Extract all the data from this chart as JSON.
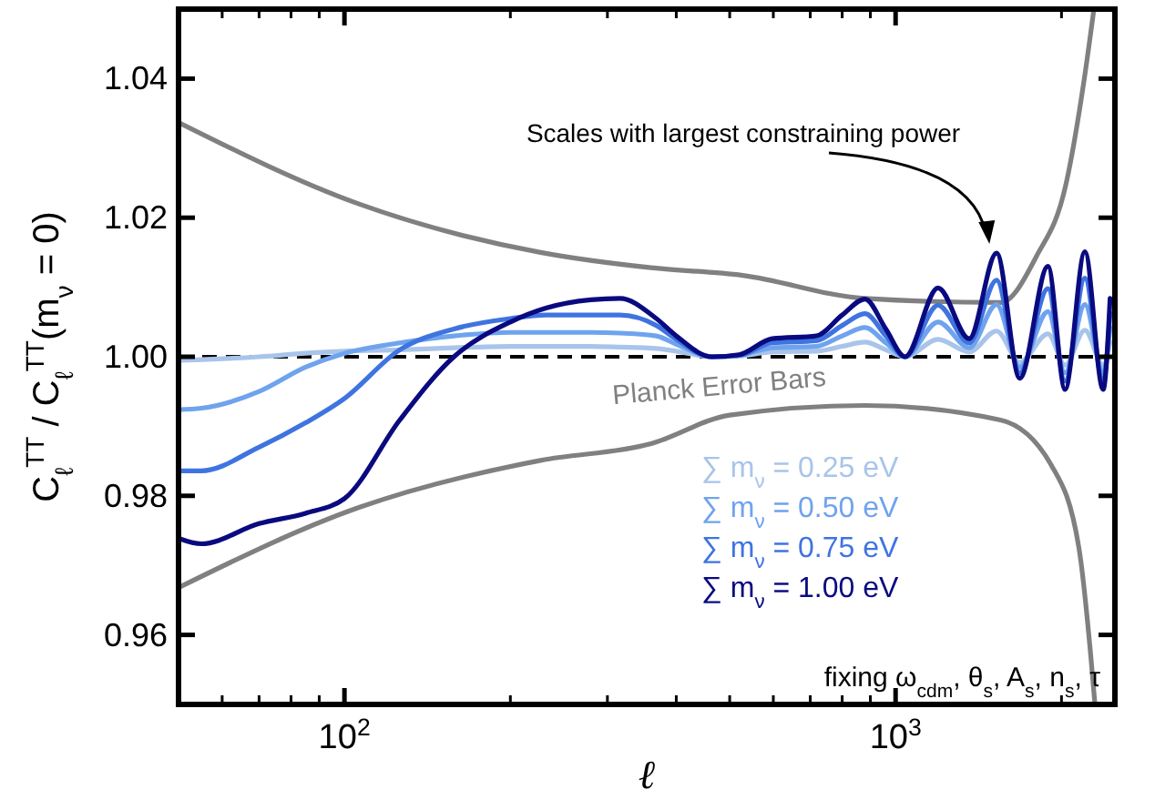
{
  "chart_data": {
    "type": "line",
    "xlabel": "ℓ",
    "ylabel": "C$_{ℓ}$$^{TT}$ / C$_{ℓ}$$^{TT}$(m$_{ν}$ = 0)",
    "log": "x",
    "xlim": [
      50,
      2500
    ],
    "ylim": [
      0.95,
      1.05
    ],
    "xticks": [
      {
        "value": 50,
        "label": null
      },
      {
        "value": 60,
        "label": null
      },
      {
        "value": 70,
        "label": null
      },
      {
        "value": 80,
        "label": null
      },
      {
        "value": 90,
        "label": null
      },
      {
        "value": 100,
        "label": "10$^{2}$"
      },
      {
        "value": 200,
        "label": null
      },
      {
        "value": 300,
        "label": null
      },
      {
        "value": 400,
        "label": null
      },
      {
        "value": 500,
        "label": null
      },
      {
        "value": 600,
        "label": null
      },
      {
        "value": 700,
        "label": null
      },
      {
        "value": 800,
        "label": null
      },
      {
        "value": 900,
        "label": null
      },
      {
        "value": 1000,
        "label": "10$^{3}$"
      },
      {
        "value": 2000,
        "label": null
      }
    ],
    "yticks": [
      0.96,
      0.98,
      {
        "value": 1.0,
        "label": "1.00"
      },
      1.02,
      1.04
    ],
    "grid": false,
    "legend": "bottom right",
    "line_style": "solid",
    "marker": "none",
    "x": [
      50,
      55,
      70,
      85,
      100,
      126,
      158,
      200,
      232,
      280,
      316,
      368,
      400,
      464,
      520,
      597,
      718,
      800,
      880,
      960,
      1040,
      1194,
      1360,
      1525,
      1680,
      1890,
      2030,
      2205,
      2380,
      2450
    ],
    "series": [
      {
        "name": "Planck Error Bars",
        "color": "#808080",
        "x": [
          50,
          106,
          227,
          360,
          528,
          878,
          1550,
          1800,
          2040,
          2200,
          2290
        ],
        "values": [
          1.0337,
          1.022,
          1.015,
          1.0128,
          1.0117,
          1.0084,
          1.0078,
          1.0144,
          1.025,
          1.04,
          1.05
        ]
      },
      {
        "color": "#808080",
        "x": [
          50,
          106,
          227,
          360,
          500,
          878,
          1550,
          1920,
          2150,
          2260,
          2300
        ],
        "values": [
          0.9668,
          0.9783,
          0.9851,
          0.9875,
          0.9916,
          0.993,
          0.9909,
          0.9843,
          0.9726,
          0.957,
          0.95
        ]
      },
      {
        "name": "∑ m$_{ν}$ = 0.25 eV",
        "color": "#a9c4ea",
        "values": [
          0.9995,
          0.9996,
          1.0,
          1.0005,
          1.0008,
          1.001,
          1.0013,
          1.0015,
          1.0015,
          1.0015,
          1.0014,
          1.0012,
          1.0008,
          1.0,
          1.0001,
          1.0007,
          1.0008,
          1.0015,
          1.0021,
          1.001,
          1.0,
          1.0025,
          1.0007,
          1.0037,
          0.9992,
          1.0033,
          0.9988,
          1.0038,
          0.9988,
          1.0021
        ]
      },
      {
        "name": "∑ m$_{ν}$ = 0.50 eV",
        "color": "#6fa3ee",
        "values": [
          0.9924,
          0.9926,
          0.995,
          0.9985,
          1.0005,
          1.002,
          1.003,
          1.0035,
          1.0035,
          1.0035,
          1.0034,
          1.003,
          1.0018,
          1.0,
          1.0002,
          1.0013,
          1.0015,
          1.003,
          1.0042,
          1.002,
          1.0,
          1.005,
          1.0013,
          1.0075,
          0.9985,
          1.0065,
          0.9977,
          1.0075,
          0.9977,
          1.0042
        ]
      },
      {
        "name": "∑ m$_{ν}$ = 0.75 eV",
        "color": "#3f74e0",
        "values": [
          0.9836,
          0.9836,
          0.987,
          0.9905,
          0.994,
          1.001,
          1.004,
          1.0055,
          1.006,
          1.006,
          1.006,
          1.0045,
          1.0025,
          1.0,
          1.0002,
          1.002,
          1.0023,
          1.0045,
          1.0062,
          1.003,
          1.0,
          1.0074,
          1.002,
          1.011,
          0.9977,
          1.0098,
          0.9965,
          1.0113,
          0.9965,
          1.0063
        ]
      },
      {
        "name": "∑ m$_{ν}$ = 1.00 eV",
        "color": "#0a0a80",
        "values": [
          0.9739,
          0.9731,
          0.976,
          0.9775,
          0.9796,
          0.9909,
          1.0,
          1.005,
          1.007,
          1.0082,
          1.0084,
          1.0055,
          1.003,
          1.0,
          1.0003,
          1.0026,
          1.003,
          1.006,
          1.0083,
          1.004,
          1.0,
          1.0099,
          1.0026,
          1.0149,
          0.9969,
          1.013,
          0.9953,
          1.0151,
          0.9953,
          1.0084
        ]
      }
    ],
    "ref_lines": [
      {
        "axis": "y",
        "value": 1.0,
        "color": "#000000",
        "line_style": "dashed"
      }
    ],
    "annotations": [
      {
        "text": "Scales with largest constraining power",
        "x": 1480,
        "y": 1.0157
      },
      "fixing ω$_{cdm}$, θ$_{s}$, A$_{s}$, n$_{s}$, τ"
    ]
  }
}
